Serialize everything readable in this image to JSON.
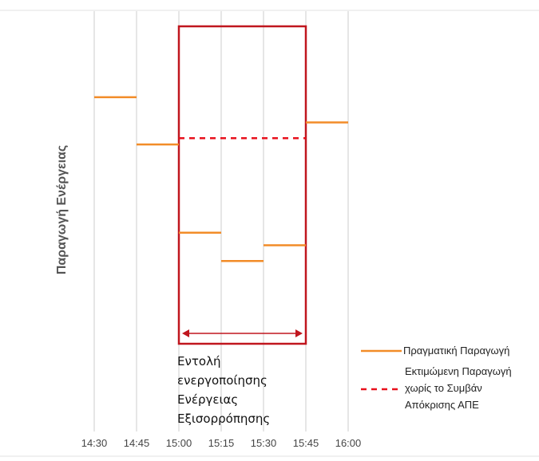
{
  "chart_data": {
    "type": "line",
    "ylabel": "Παραγωγή Ενέργειας",
    "categories": [
      "14:30",
      "14:45",
      "15:00",
      "15:15",
      "15:30",
      "15:45",
      "16:00"
    ],
    "series": [
      {
        "name": "Πραγματική Παραγωγή",
        "style": "solid",
        "color": "#f28c28",
        "segments": [
          {
            "x_start": "14:30",
            "x_end": "14:45",
            "y": 0.78
          },
          {
            "x_start": "14:45",
            "x_end": "15:00",
            "y": 0.63
          },
          {
            "x_start": "15:00",
            "x_end": "15:15",
            "y": 0.35
          },
          {
            "x_start": "15:15",
            "x_end": "15:30",
            "y": 0.26
          },
          {
            "x_start": "15:30",
            "x_end": "15:45",
            "y": 0.31
          },
          {
            "x_start": "15:45",
            "x_end": "16:00",
            "y": 0.7
          }
        ]
      },
      {
        "name": "Εκτιμώμενη Παραγωγή χωρίς το Συμβάν Απόκρισης ΑΠΕ",
        "style": "dashed",
        "color": "#e8101c",
        "segments": [
          {
            "x_start": "15:00",
            "x_end": "15:45",
            "y": 0.65
          }
        ]
      }
    ],
    "highlight": {
      "x_start": "15:00",
      "x_end": "15:45",
      "color": "#c0161e"
    },
    "annotation_lines": [
      "Εντολή",
      "ενεργοποίησης",
      "Ενέργειας",
      "Εξισορρόπησης"
    ],
    "legend_position": "bottom-right",
    "legend_lines": [
      [
        "Πραγματική Παραγωγή"
      ],
      [
        "Εκτιμώμενη Παραγωγή",
        "χωρίς το Συμβάν",
        "Απόκρισης ΑΠΕ"
      ]
    ],
    "grid": "vertical"
  }
}
